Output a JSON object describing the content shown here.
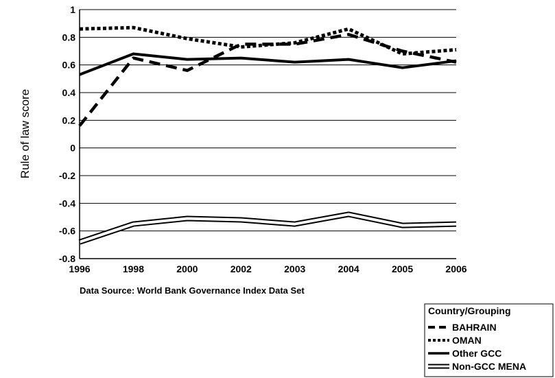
{
  "chart_data": {
    "type": "line",
    "categories": [
      "1996",
      "1998",
      "2000",
      "2002",
      "2003",
      "2004",
      "2005",
      "2006"
    ],
    "ylabel": "Rule of law score",
    "ylim": [
      -0.8,
      1
    ],
    "yticks": [
      "1",
      "0.8",
      "0.6",
      "0.4",
      "0.2",
      "0",
      "-0.2",
      "-0.4",
      "-0.6",
      "-0.8"
    ],
    "grid": true,
    "legend": {
      "title": "Country/Grouping",
      "placement": "bottom-right"
    },
    "source_note": "Data Source: World Bank Governance Index Data Set",
    "series": [
      {
        "name": "BAHRAIN",
        "style": "dashed",
        "values": [
          0.16,
          0.65,
          0.56,
          0.75,
          0.75,
          0.82,
          0.7,
          0.62
        ]
      },
      {
        "name": "OMAN",
        "style": "dotted",
        "values": [
          0.86,
          0.87,
          0.79,
          0.73,
          0.76,
          0.86,
          0.68,
          0.71
        ]
      },
      {
        "name": "Other GCC",
        "style": "solid",
        "values": [
          0.53,
          0.68,
          0.64,
          0.65,
          0.62,
          0.64,
          0.58,
          0.63
        ]
      },
      {
        "name": "Non-GCC MENA",
        "style": "double",
        "values": [
          -0.68,
          -0.55,
          -0.51,
          -0.52,
          -0.55,
          -0.48,
          -0.56,
          -0.55
        ]
      }
    ]
  }
}
